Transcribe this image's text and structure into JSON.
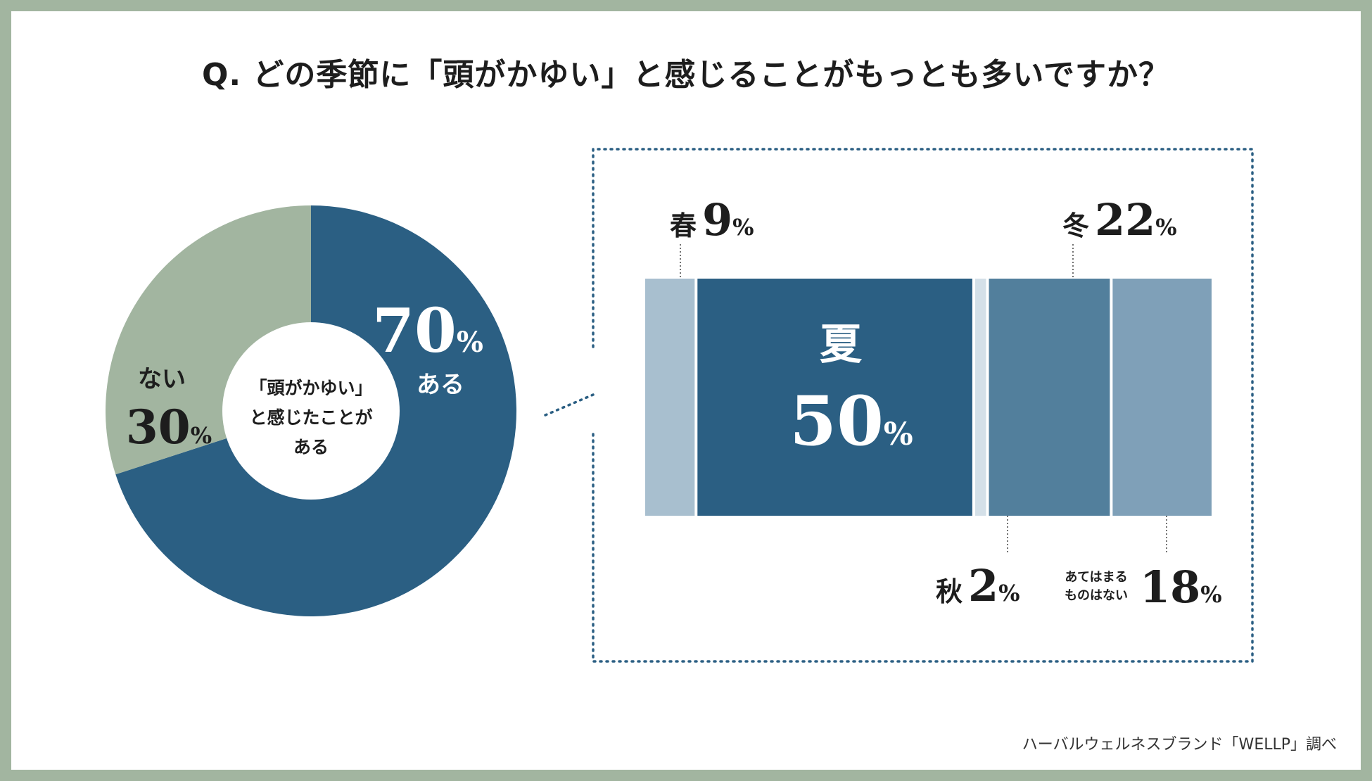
{
  "title": "Q. どの季節に「頭がかゆい」と感じることがもっとも多いですか？",
  "source": "ハーバルウェルネスブランド「WELLP」調べ",
  "colors": {
    "border": "#a2b5a0",
    "dark_blue": "#2b5f83",
    "sage": "#a2b5a0",
    "spring": "#a8bfcf",
    "autumn": "#d4e0e8",
    "winter": "#527f9c",
    "none": "#7fa0b8"
  },
  "chart_data": [
    {
      "type": "pie",
      "center_label": [
        "「頭がかゆい」",
        "と感じたことが",
        "ある"
      ],
      "slices": [
        {
          "label": "ある",
          "value": 70,
          "value_text": "70",
          "unit": "%"
        },
        {
          "label": "ない",
          "value": 30,
          "value_text": "30",
          "unit": "%"
        }
      ]
    },
    {
      "type": "bar",
      "orientation": "stacked-horizontal",
      "segments": [
        {
          "label": "春",
          "value": 9,
          "value_text": "9",
          "unit": "%"
        },
        {
          "label": "夏",
          "value": 50,
          "value_text": "50",
          "unit": "%"
        },
        {
          "label": "秋",
          "value": 2,
          "value_text": "2",
          "unit": "%"
        },
        {
          "label": "冬",
          "value": 22,
          "value_text": "22",
          "unit": "%"
        },
        {
          "label_lines": [
            "あてはまる",
            "ものはない"
          ],
          "value": 18,
          "value_text": "18",
          "unit": "%"
        }
      ]
    }
  ]
}
